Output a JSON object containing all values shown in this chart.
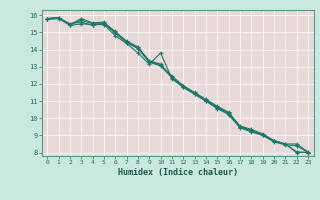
{
  "xlabel": "Humidex (Indice chaleur)",
  "xlim": [
    -0.5,
    23.5
  ],
  "ylim": [
    7.8,
    16.3
  ],
  "bg_color": "#c8e8e0",
  "plot_bg_color": "#e8d8d8",
  "grid_color": "#ffffff",
  "line_color": "#1a7a6a",
  "spine_color": "#5a9a8a",
  "tick_color": "#2a6a5a",
  "label_color": "#1a5a4a",
  "series": [
    [
      15.8,
      15.85,
      15.45,
      15.8,
      15.55,
      15.6,
      15.0,
      14.5,
      14.15,
      13.3,
      13.1,
      12.45,
      11.9,
      11.5,
      11.1,
      10.7,
      10.35,
      9.55,
      9.35,
      9.1,
      8.7,
      8.5,
      8.05,
      8.0
    ],
    [
      15.75,
      15.8,
      15.4,
      15.5,
      15.45,
      15.45,
      14.8,
      14.35,
      13.8,
      13.15,
      13.8,
      12.3,
      11.8,
      11.4,
      11.0,
      10.55,
      10.25,
      9.5,
      9.25,
      9.05,
      8.65,
      8.5,
      8.0,
      8.0
    ],
    [
      15.8,
      15.85,
      15.5,
      15.6,
      15.4,
      15.55,
      15.05,
      14.45,
      14.1,
      13.35,
      13.15,
      12.4,
      11.85,
      11.45,
      11.05,
      10.65,
      10.3,
      9.5,
      9.3,
      9.0,
      8.7,
      8.5,
      8.5,
      8.05
    ],
    [
      15.8,
      15.85,
      15.45,
      15.7,
      15.5,
      15.5,
      14.95,
      14.4,
      14.05,
      13.25,
      13.05,
      12.35,
      11.8,
      11.4,
      11.0,
      10.6,
      10.2,
      9.45,
      9.2,
      9.0,
      8.62,
      8.45,
      8.4,
      8.0
    ]
  ],
  "yticks": [
    8,
    9,
    10,
    11,
    12,
    13,
    14,
    15,
    16
  ],
  "xtick_labels": [
    "0",
    "1",
    "2",
    "3",
    "4",
    "5",
    "6",
    "7",
    "8",
    "9",
    "10",
    "11",
    "12",
    "13",
    "14",
    "15",
    "16",
    "17",
    "18",
    "19",
    "20",
    "21",
    "22",
    "23"
  ]
}
